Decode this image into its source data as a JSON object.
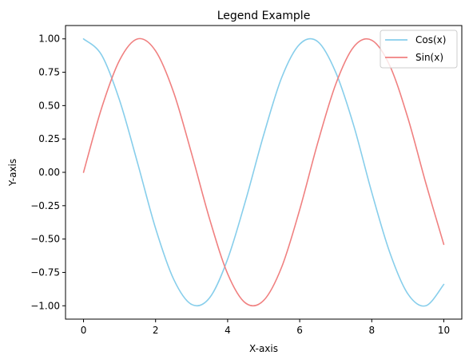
{
  "chart_data": {
    "type": "line",
    "title": "Legend Example",
    "xlabel": "X-axis",
    "ylabel": "Y-axis",
    "xlim": [
      -0.5,
      10.5
    ],
    "ylim": [
      -1.1,
      1.1
    ],
    "xticks": [
      0,
      2,
      4,
      6,
      8,
      10
    ],
    "xtick_labels": [
      "0",
      "2",
      "4",
      "6",
      "8",
      "10"
    ],
    "yticks": [
      -1.0,
      -0.75,
      -0.5,
      -0.25,
      0.0,
      0.25,
      0.5,
      0.75,
      1.0
    ],
    "ytick_labels": [
      "−1.00",
      "−0.75",
      "−0.50",
      "−0.25",
      "0.00",
      "0.25",
      "0.50",
      "0.75",
      "1.00"
    ],
    "grid": false,
    "legend_position": "top-right",
    "x": [
      0,
      0.5,
      1,
      1.5,
      2,
      2.5,
      3,
      3.5,
      4,
      4.5,
      5,
      5.5,
      6,
      6.5,
      7,
      7.5,
      8,
      8.5,
      9,
      9.5,
      10
    ],
    "series": [
      {
        "name": "Cos(x)",
        "color": "#87CEEB",
        "values": [
          1.0,
          0.88,
          0.54,
          0.07,
          -0.42,
          -0.8,
          -0.99,
          -0.94,
          -0.65,
          -0.21,
          0.28,
          0.71,
          0.96,
          0.98,
          0.75,
          0.35,
          -0.15,
          -0.6,
          -0.91,
          -1.0,
          -0.84
        ]
      },
      {
        "name": "Sin(x)",
        "color": "#F08080",
        "values": [
          0.0,
          0.48,
          0.84,
          1.0,
          0.91,
          0.6,
          0.14,
          -0.35,
          -0.76,
          -0.98,
          -0.96,
          -0.71,
          -0.28,
          0.22,
          0.66,
          0.94,
          0.99,
          0.8,
          0.41,
          -0.08,
          -0.54
        ]
      }
    ]
  }
}
